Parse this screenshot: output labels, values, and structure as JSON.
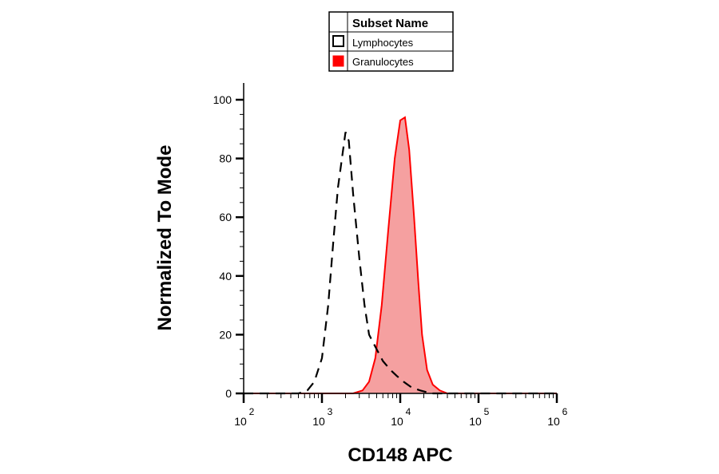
{
  "chart_data": {
    "type": "area",
    "title": "",
    "xlabel": "CD148 APC",
    "ylabel": "Normalized To Mode",
    "x_scale": "log",
    "xlim": [
      100,
      1000000
    ],
    "ylim": [
      0,
      100
    ],
    "grid": false,
    "legend": {
      "position": "top-center",
      "title": "Subset Name",
      "entries": [
        "Lymphocytes",
        "Granulocytes"
      ]
    },
    "x_ticks": [
      {
        "base": "10",
        "exp": "2",
        "value": 100
      },
      {
        "base": "10",
        "exp": "3",
        "value": 1000
      },
      {
        "base": "10",
        "exp": "4",
        "value": 10000
      },
      {
        "base": "10",
        "exp": "5",
        "value": 100000
      },
      {
        "base": "10",
        "exp": "6",
        "value": 1000000
      }
    ],
    "y_ticks": [
      {
        "label": "0",
        "value": 0
      },
      {
        "label": "20",
        "value": 20
      },
      {
        "label": "40",
        "value": 40
      },
      {
        "label": "60",
        "value": 60
      },
      {
        "label": "80",
        "value": 80
      },
      {
        "label": "100",
        "value": 100
      }
    ],
    "series": [
      {
        "name": "Lymphocytes",
        "style": "dashed-outline",
        "color": "#000000",
        "points": [
          [
            100,
            0
          ],
          [
            500,
            0
          ],
          [
            650,
            1
          ],
          [
            800,
            4
          ],
          [
            1000,
            12
          ],
          [
            1200,
            30
          ],
          [
            1400,
            52
          ],
          [
            1600,
            70
          ],
          [
            1800,
            80
          ],
          [
            2000,
            89
          ],
          [
            2200,
            86
          ],
          [
            2500,
            68
          ],
          [
            3000,
            46
          ],
          [
            3500,
            30
          ],
          [
            4000,
            20
          ],
          [
            5000,
            15
          ],
          [
            6000,
            11
          ],
          [
            7500,
            8
          ],
          [
            9000,
            6
          ],
          [
            11000,
            4
          ],
          [
            14000,
            2
          ],
          [
            18000,
            1
          ],
          [
            25000,
            0
          ],
          [
            1000000,
            0
          ]
        ]
      },
      {
        "name": "Granulocytes",
        "style": "filled",
        "color": "#ff0000",
        "fill": "#f5a0a0",
        "points": [
          [
            100,
            0
          ],
          [
            2500,
            0
          ],
          [
            3300,
            1
          ],
          [
            4000,
            4
          ],
          [
            4800,
            12
          ],
          [
            5800,
            30
          ],
          [
            7000,
            55
          ],
          [
            8500,
            80
          ],
          [
            10000,
            93
          ],
          [
            11500,
            94
          ],
          [
            13000,
            83
          ],
          [
            15000,
            60
          ],
          [
            17000,
            38
          ],
          [
            19000,
            20
          ],
          [
            22000,
            8
          ],
          [
            26000,
            3
          ],
          [
            32000,
            1
          ],
          [
            40000,
            0
          ],
          [
            1000000,
            0
          ]
        ]
      }
    ]
  }
}
